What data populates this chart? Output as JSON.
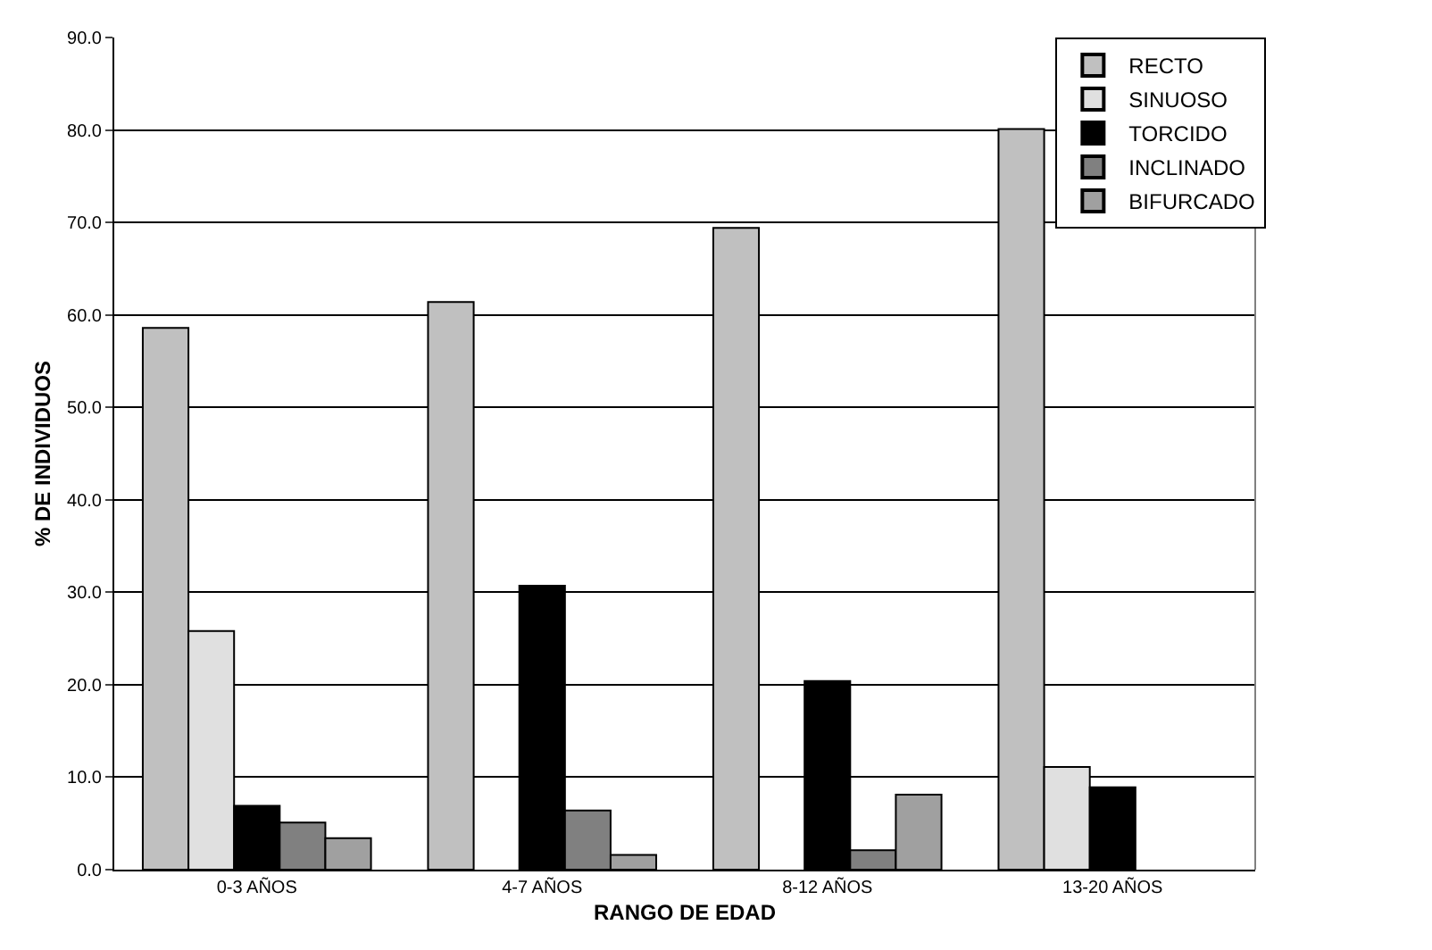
{
  "chart_data": {
    "type": "bar",
    "xlabel": "RANGO DE EDAD",
    "ylabel": "% DE INDIVIDUOS",
    "categories": [
      "0-3 AÑOS",
      "4-7 AÑOS",
      "8-12 AÑOS",
      "13-20 AÑOS"
    ],
    "series": [
      {
        "name": "RECTO",
        "color": "#c0c0c0",
        "values": [
          58.6,
          61.4,
          69.4,
          80.1
        ]
      },
      {
        "name": "SINUOSO",
        "color": "#e0e0e0",
        "values": [
          25.8,
          null,
          null,
          11.1
        ]
      },
      {
        "name": "TORCIDO",
        "color": "#000000",
        "values": [
          6.9,
          30.7,
          20.4,
          8.9
        ]
      },
      {
        "name": "INCLINADO",
        "color": "#808080",
        "values": [
          5.1,
          6.4,
          2.1,
          null
        ]
      },
      {
        "name": "BIFURCADO",
        "color": "#a0a0a0",
        "values": [
          3.4,
          1.6,
          8.1,
          null
        ]
      }
    ],
    "ylim": [
      0,
      90
    ],
    "yticks": [
      {
        "value": 0,
        "label": "0.0"
      },
      {
        "value": 10,
        "label": "10.0"
      },
      {
        "value": 20,
        "label": "20.0"
      },
      {
        "value": 30,
        "label": "30.0"
      },
      {
        "value": 40,
        "label": "40.0"
      },
      {
        "value": 50,
        "label": "50.0"
      },
      {
        "value": 60,
        "label": "60.0"
      },
      {
        "value": 70,
        "label": "70.0"
      },
      {
        "value": 80,
        "label": "80.0"
      },
      {
        "value": 90,
        "label": "90.0"
      }
    ],
    "grid": "y",
    "legend": "top right"
  }
}
